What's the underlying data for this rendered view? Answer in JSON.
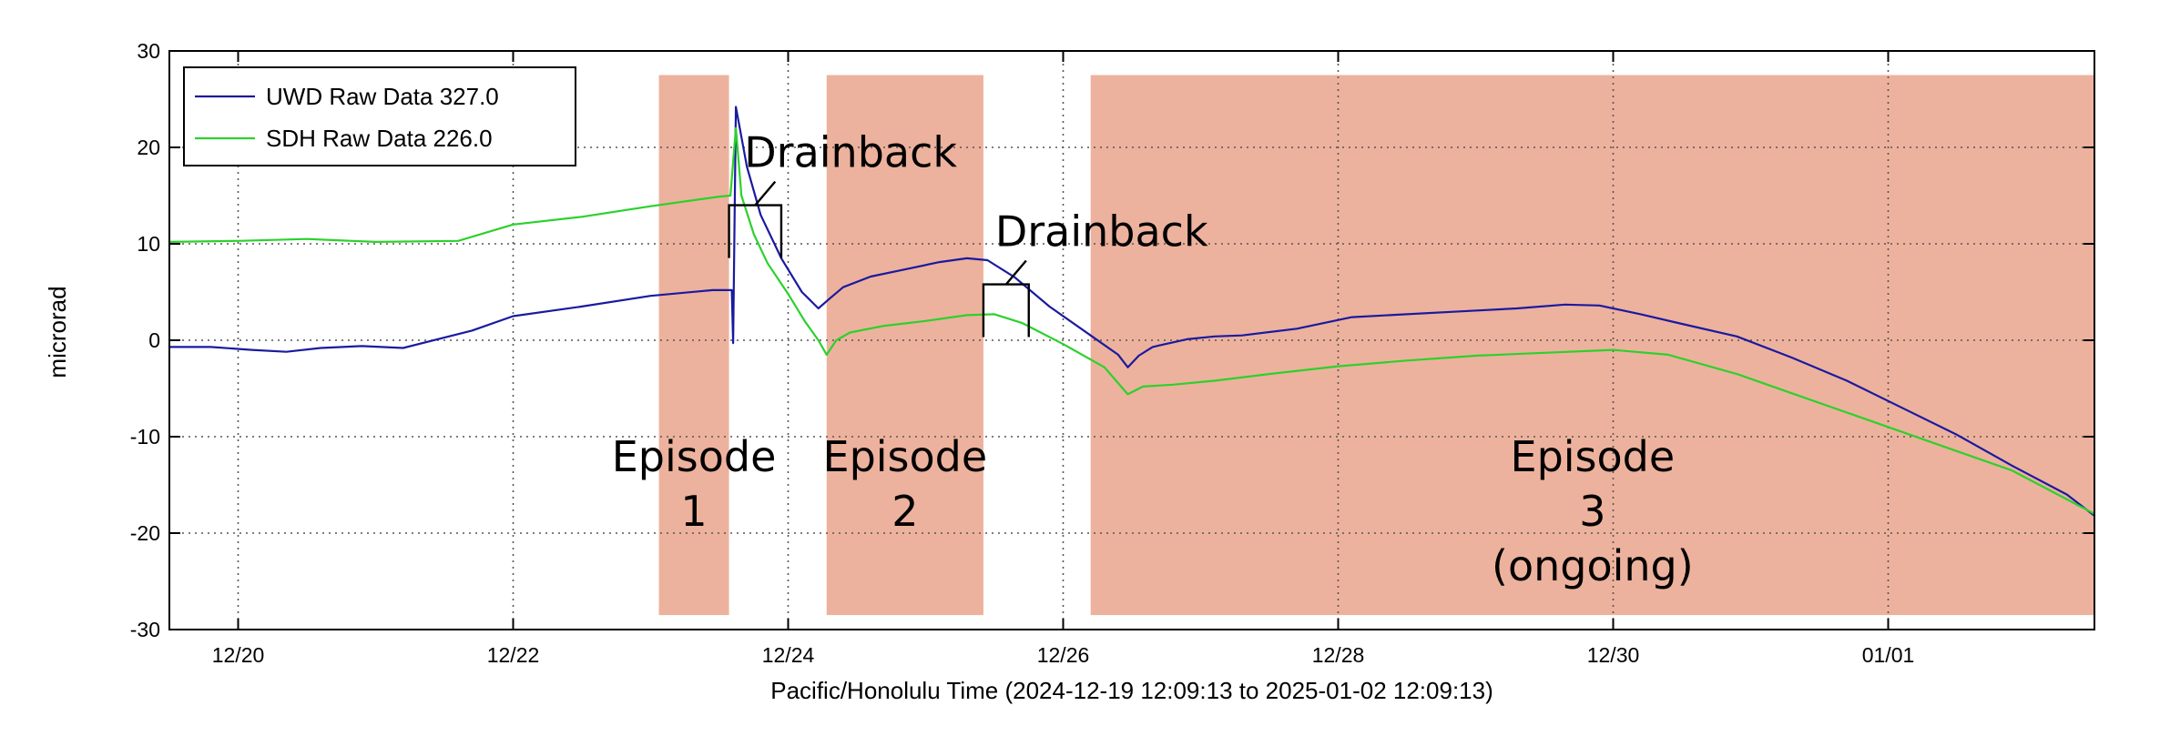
{
  "chart_data": {
    "type": "line",
    "title": "",
    "xlabel": "Pacific/Honolulu Time (2024-12-19 12:09:13 to 2025-01-02 12:09:13)",
    "ylabel": "microrad",
    "xlim": [
      0,
      14
    ],
    "ylim": [
      -30,
      30
    ],
    "grid": true,
    "legend_position": "top-left",
    "x_tick_values": [
      0.5,
      2.5,
      4.5,
      6.5,
      8.5,
      10.5,
      12.5
    ],
    "x_ticks": [
      "12/20",
      "12/22",
      "12/24",
      "12/26",
      "12/28",
      "12/30",
      "01/01"
    ],
    "y_ticks": [
      -30,
      -20,
      -10,
      0,
      10,
      20,
      30
    ],
    "colors": {
      "UWD": "#1a1aa0",
      "SDH": "#2cd12c",
      "episode_fill": "#edb29d"
    },
    "series": [
      {
        "name": "UWD Raw Data 327.0",
        "color": "#1a1aa0",
        "points": [
          [
            0,
            -0.7
          ],
          [
            0.3,
            -0.7
          ],
          [
            0.6,
            -1
          ],
          [
            0.85,
            -1.2
          ],
          [
            1.1,
            -0.8
          ],
          [
            1.4,
            -0.6
          ],
          [
            1.7,
            -0.8
          ],
          [
            2.2,
            1
          ],
          [
            2.5,
            2.5
          ],
          [
            3.0,
            3.5
          ],
          [
            3.5,
            4.6
          ],
          [
            3.95,
            5.2
          ],
          [
            4.09,
            5.2
          ],
          [
            4.1,
            -0.3
          ],
          [
            4.12,
            24.2
          ],
          [
            4.2,
            18
          ],
          [
            4.3,
            13
          ],
          [
            4.45,
            8.5
          ],
          [
            4.6,
            5
          ],
          [
            4.72,
            3.3
          ],
          [
            4.8,
            4.3
          ],
          [
            4.9,
            5.5
          ],
          [
            5.1,
            6.6
          ],
          [
            5.3,
            7.2
          ],
          [
            5.6,
            8.1
          ],
          [
            5.8,
            8.5
          ],
          [
            5.95,
            8.3
          ],
          [
            6.15,
            6.5
          ],
          [
            6.4,
            3.5
          ],
          [
            6.7,
            0.5
          ],
          [
            6.9,
            -1.5
          ],
          [
            6.97,
            -2.8
          ],
          [
            7.05,
            -1.6
          ],
          [
            7.15,
            -0.7
          ],
          [
            7.4,
            0.1
          ],
          [
            7.6,
            0.4
          ],
          [
            7.8,
            0.5
          ],
          [
            8.2,
            1.2
          ],
          [
            8.6,
            2.4
          ],
          [
            9.0,
            2.7
          ],
          [
            9.4,
            3
          ],
          [
            9.8,
            3.3
          ],
          [
            10.15,
            3.7
          ],
          [
            10.4,
            3.6
          ],
          [
            10.7,
            2.7
          ],
          [
            11.0,
            1.7
          ],
          [
            11.4,
            0.4
          ],
          [
            11.8,
            -1.8
          ],
          [
            12.2,
            -4.2
          ],
          [
            12.6,
            -7
          ],
          [
            13.0,
            -9.8
          ],
          [
            13.4,
            -13
          ],
          [
            13.8,
            -16
          ],
          [
            14.0,
            -18.2
          ]
        ]
      },
      {
        "name": "SDH Raw Data 226.0",
        "color": "#2cd12c",
        "points": [
          [
            0,
            10.2
          ],
          [
            0.5,
            10.3
          ],
          [
            1.0,
            10.5
          ],
          [
            1.5,
            10.2
          ],
          [
            2.1,
            10.3
          ],
          [
            2.5,
            12
          ],
          [
            3.0,
            12.8
          ],
          [
            3.5,
            13.9
          ],
          [
            4.0,
            14.9
          ],
          [
            4.08,
            15
          ],
          [
            4.12,
            22
          ],
          [
            4.16,
            15
          ],
          [
            4.25,
            11
          ],
          [
            4.35,
            8
          ],
          [
            4.5,
            4.8
          ],
          [
            4.62,
            2
          ],
          [
            4.72,
            0
          ],
          [
            4.78,
            -1.5
          ],
          [
            4.85,
            0
          ],
          [
            4.95,
            0.8
          ],
          [
            5.2,
            1.5
          ],
          [
            5.5,
            2
          ],
          [
            5.8,
            2.6
          ],
          [
            6.0,
            2.7
          ],
          [
            6.2,
            1.8
          ],
          [
            6.5,
            -0.4
          ],
          [
            6.8,
            -2.8
          ],
          [
            6.97,
            -5.6
          ],
          [
            7.08,
            -4.8
          ],
          [
            7.3,
            -4.6
          ],
          [
            7.6,
            -4.2
          ],
          [
            8.0,
            -3.5
          ],
          [
            8.5,
            -2.7
          ],
          [
            9.0,
            -2.1
          ],
          [
            9.5,
            -1.6
          ],
          [
            10.0,
            -1.3
          ],
          [
            10.5,
            -1
          ],
          [
            10.9,
            -1.5
          ],
          [
            11.4,
            -3.5
          ],
          [
            11.8,
            -5.5
          ],
          [
            12.2,
            -7.5
          ],
          [
            12.6,
            -9.5
          ],
          [
            13.0,
            -11.5
          ],
          [
            13.4,
            -13.5
          ],
          [
            13.8,
            -16.5
          ],
          [
            14.0,
            -18
          ]
        ]
      }
    ],
    "episodes": [
      {
        "label": "Episode",
        "number": "1",
        "status": "",
        "x": [
          3.56,
          4.07
        ],
        "y": [
          -28.5,
          27.5
        ]
      },
      {
        "label": "Episode",
        "number": "2",
        "status": "",
        "x": [
          4.78,
          5.92
        ],
        "y": [
          -28.5,
          27.5
        ]
      },
      {
        "label": "Episode",
        "number": "3",
        "status": "(ongoing)",
        "x": [
          6.7,
          14.0
        ],
        "y": [
          -28.5,
          27.5
        ]
      }
    ],
    "annotations": [
      {
        "text": "Drainback",
        "bracket_x": [
          4.07,
          4.45
        ],
        "bracket_y": 14
      },
      {
        "text": "Drainback",
        "bracket_x": [
          5.92,
          6.25
        ],
        "bracket_y": 5.8
      }
    ]
  }
}
